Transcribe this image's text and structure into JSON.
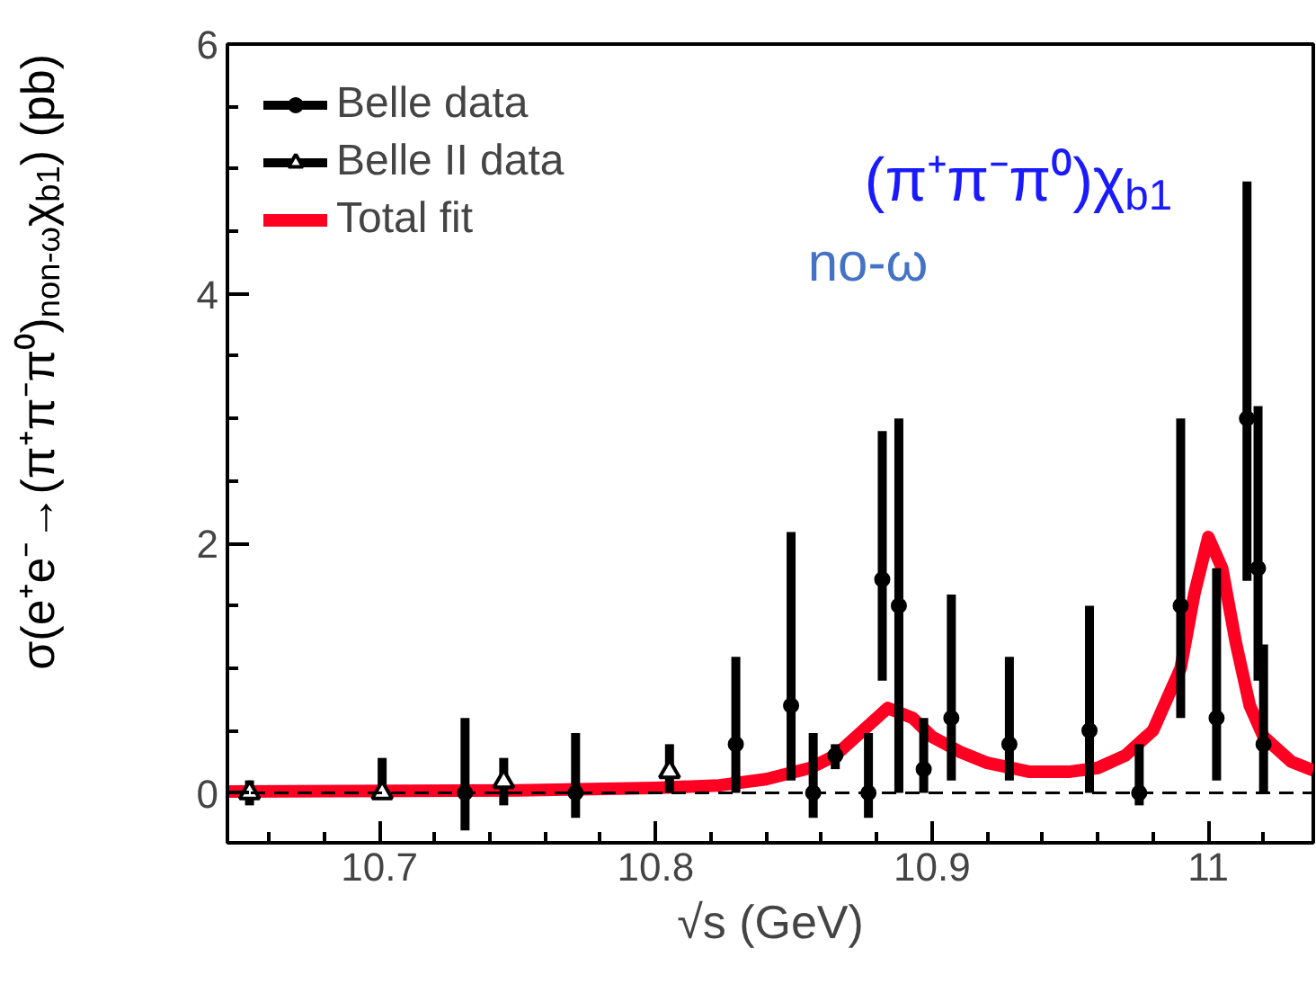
{
  "chart_data": {
    "type": "scatter",
    "xlabel": "√s (GeV)",
    "ylabel": "σ(e⁺e⁻→(π⁺π⁻π⁰)$_{non-ω}$χ$_{b1}$) (pb)",
    "annotations": [
      "(π⁺π⁻π⁰)χ$_{b1}$",
      "no-ω"
    ],
    "xlim": [
      10.645,
      11.038
    ],
    "xticks": [
      10.7,
      10.8,
      10.9,
      {
        "value": 11.0,
        "label": "11"
      }
    ],
    "ylim": [
      -0.4,
      6
    ],
    "yticks": [
      0,
      2,
      4,
      6
    ],
    "grid": false,
    "legend": "top left",
    "ref_lines": [
      {
        "axis": "y",
        "value": 0,
        "color": "#000000",
        "line_style": "dashed"
      }
    ],
    "series": [
      {
        "name": "Belle data",
        "marker": "circle",
        "color": "#000000",
        "x": [
          10.731,
          10.771,
          10.829,
          10.849,
          10.857,
          10.865,
          10.877,
          10.882,
          10.888,
          10.897,
          10.907,
          10.928,
          10.957,
          10.975,
          10.99,
          11.003,
          11.014,
          11.018,
          11.02
        ],
        "values": [
          0,
          0,
          0.39,
          0.7,
          0,
          0.3,
          0,
          1.71,
          1.5,
          0.19,
          0.6,
          0.39,
          0.5,
          0,
          1.5,
          0.6,
          3.0,
          1.8,
          0.39
        ],
        "errors": [
          [
            -0.3,
            0.6
          ],
          [
            -0.2,
            0.48
          ],
          [
            0,
            1.09
          ],
          [
            0.1,
            2.09
          ],
          [
            -0.2,
            0.48
          ],
          [
            0.19,
            0.39
          ],
          [
            -0.2,
            0.48
          ],
          [
            0.9,
            2.9
          ],
          [
            0,
            3.0
          ],
          [
            0,
            0.6
          ],
          [
            0.1,
            1.59
          ],
          [
            0.1,
            1.09
          ],
          [
            0,
            1.5
          ],
          [
            -0.1,
            0.39
          ],
          [
            0.6,
            3.0
          ],
          [
            0.1,
            1.8
          ],
          [
            1.7,
            4.9
          ],
          [
            0.9,
            3.1
          ],
          [
            0,
            1.19
          ]
        ]
      },
      {
        "name": "Belle II data",
        "marker": "triangle",
        "color": "#000000",
        "x": [
          10.653,
          10.701,
          10.745,
          10.805
        ],
        "values": [
          0,
          0,
          0.09,
          0.17
        ],
        "errors": [
          [
            -0.1,
            0.1
          ],
          [
            -0.05,
            0.28
          ],
          [
            -0.1,
            0.28
          ],
          [
            0,
            0.39
          ]
        ]
      },
      {
        "name": "Total fit",
        "type": "line",
        "marker": "none",
        "color": "#ff0022",
        "x": [
          10.645,
          10.75,
          10.8,
          10.823,
          10.84,
          10.856,
          10.865,
          10.875,
          10.884,
          10.893,
          10.9,
          10.91,
          10.92,
          10.935,
          10.95,
          10.96,
          10.97,
          10.98,
          10.99,
          10.995,
          11.0,
          11.005,
          11.01,
          11.015,
          11.02,
          11.03,
          11.038
        ],
        "values": [
          0.01,
          0.02,
          0.04,
          0.06,
          0.11,
          0.2,
          0.3,
          0.5,
          0.68,
          0.6,
          0.45,
          0.33,
          0.24,
          0.17,
          0.17,
          0.2,
          0.3,
          0.5,
          1.0,
          1.6,
          2.05,
          1.8,
          1.2,
          0.7,
          0.45,
          0.25,
          0.18
        ]
      }
    ]
  }
}
